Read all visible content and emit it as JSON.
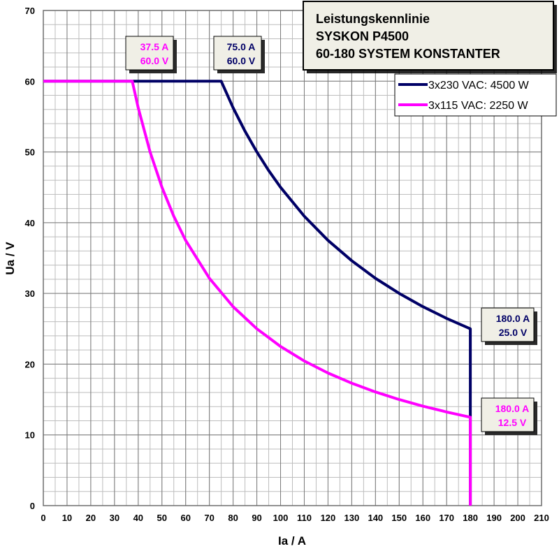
{
  "chart_data": {
    "type": "line",
    "title_lines": [
      "Leistungskennlinie",
      "SYSKON P4500",
      "60-180 SYSTEM KONSTANTER"
    ],
    "xlabel": "Ia / A",
    "ylabel": "Ua / V",
    "xlim": [
      0,
      210
    ],
    "ylim": [
      0,
      70
    ],
    "xticks": [
      "0",
      "10",
      "20",
      "30",
      "40",
      "50",
      "60",
      "70",
      "80",
      "90",
      "100",
      "110",
      "120",
      "130",
      "140",
      "150",
      "160",
      "170",
      "180",
      "190",
      "200",
      "210"
    ],
    "yticks": [
      "0",
      "10",
      "20",
      "30",
      "40",
      "50",
      "60",
      "70"
    ],
    "grid": true,
    "x_minor_step": 5,
    "y_minor_step": 2,
    "legend_position": "top-right",
    "series": [
      {
        "name": "3x230 VAC: 4500 W",
        "color": "#000066",
        "points": [
          [
            0,
            60
          ],
          [
            75,
            60
          ],
          [
            80,
            56.25
          ],
          [
            85,
            52.94
          ],
          [
            90,
            50
          ],
          [
            95,
            47.37
          ],
          [
            100,
            45
          ],
          [
            110,
            40.91
          ],
          [
            120,
            37.5
          ],
          [
            130,
            34.62
          ],
          [
            140,
            32.14
          ],
          [
            150,
            30
          ],
          [
            160,
            28.13
          ],
          [
            170,
            26.47
          ],
          [
            180,
            25
          ],
          [
            180,
            0
          ]
        ]
      },
      {
        "name": "3x115 VAC: 2250 W",
        "color": "#ff00ff",
        "points": [
          [
            0,
            60
          ],
          [
            37.5,
            60
          ],
          [
            40,
            56.25
          ],
          [
            45,
            50
          ],
          [
            50,
            45
          ],
          [
            55,
            40.91
          ],
          [
            60,
            37.5
          ],
          [
            70,
            32.14
          ],
          [
            80,
            28.13
          ],
          [
            90,
            25
          ],
          [
            100,
            22.5
          ],
          [
            110,
            20.45
          ],
          [
            120,
            18.75
          ],
          [
            130,
            17.31
          ],
          [
            140,
            16.07
          ],
          [
            150,
            15
          ],
          [
            160,
            14.06
          ],
          [
            170,
            13.24
          ],
          [
            180,
            12.5
          ],
          [
            180,
            0
          ]
        ]
      }
    ],
    "annotations": [
      {
        "line1": "37.5 A",
        "line2": "60.0 V",
        "color": "#ff00ff"
      },
      {
        "line1": "75.0 A",
        "line2": "60.0 V",
        "color": "#000066"
      },
      {
        "line1": "180.0 A",
        "line2": "25.0 V",
        "color": "#000066"
      },
      {
        "line1": "180.0 A",
        "line2": "12.5 V",
        "color": "#ff00ff"
      }
    ]
  }
}
